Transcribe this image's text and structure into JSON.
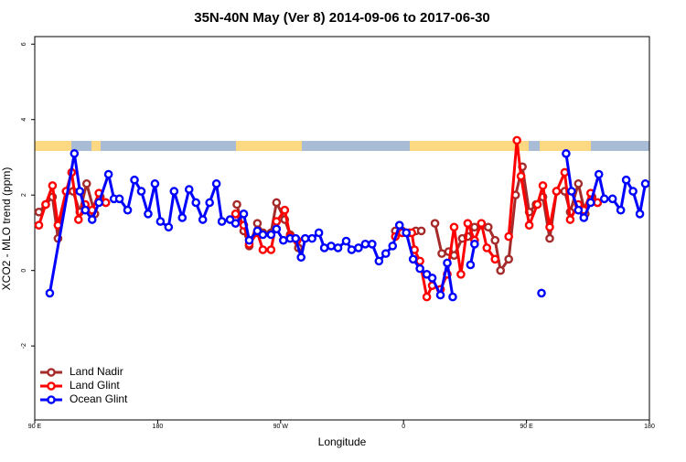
{
  "chart_data": {
    "type": "line",
    "title": "35N-40N May (Ver 8)   2014-09-06 to 2017-06-30",
    "x_label": "Longitude",
    "y_label": "XCO2 - MLO trend (ppm)",
    "xlim": [
      90,
      540
    ],
    "xticks": [
      {
        "value": 90,
        "label": "90 E"
      },
      {
        "value": 180,
        "label": "180"
      },
      {
        "value": 270,
        "label": "90 W"
      },
      {
        "value": 360,
        "label": "0"
      },
      {
        "value": 450,
        "label": "90 E"
      },
      {
        "value": 540,
        "label": "180"
      }
    ],
    "ylim": [
      -3.96,
      6.2
    ],
    "yticks": [
      -2,
      0,
      2,
      4,
      6
    ],
    "legend": "bottom-left",
    "series": [
      {
        "name": "Land Nadir",
        "color": "#a52a2a",
        "x": [
          93,
          98,
          103,
          107,
          113,
          118,
          123,
          128,
          134,
          138,
          142,
          null,
          238,
          243,
          247,
          253,
          257,
          263,
          267,
          273,
          277,
          283,
          null,
          354,
          359,
          364,
          369,
          373,
          null,
          383,
          388,
          393,
          397,
          403,
          407,
          412,
          417,
          422,
          427,
          431,
          437,
          442,
          447,
          452,
          457,
          462,
          467,
          472,
          478,
          482,
          488,
          493,
          498,
          502
        ],
        "values": [
          1.55,
          1.75,
          1.95,
          0.85,
          2.1,
          2.1,
          1.55,
          2.3,
          1.5,
          1.95,
          1.8,
          null,
          1.75,
          1.05,
          0.65,
          1.25,
          1.0,
          1.0,
          1.8,
          1.35,
          0.95,
          0.6,
          null,
          1.05,
          1.05,
          1.0,
          1.05,
          1.05,
          null,
          1.25,
          0.45,
          0.5,
          0.4,
          0.85,
          0.9,
          1.15,
          1.2,
          1.15,
          0.8,
          0.0,
          0.3,
          2.0,
          2.75,
          1.55,
          1.75,
          1.95,
          0.85,
          2.1,
          2.1,
          1.55,
          2.3,
          1.5,
          1.95,
          1.8
        ]
      },
      {
        "name": "Land Glint",
        "color": "#ff0000",
        "x": [
          93,
          98,
          103,
          107,
          113,
          117,
          122,
          127,
          132,
          137,
          142,
          null,
          237,
          243,
          247,
          253,
          257,
          263,
          267,
          273,
          277,
          282,
          null,
          354,
          359,
          366,
          368,
          372,
          377,
          381,
          387,
          392,
          397,
          402,
          407,
          412,
          417,
          421,
          427,
          null,
          437,
          443,
          446,
          452,
          458,
          462,
          467,
          472,
          478,
          482,
          488,
          492,
          497,
          502
        ],
        "values": [
          1.2,
          1.75,
          2.25,
          1.2,
          2.1,
          2.6,
          1.35,
          1.75,
          1.6,
          2.05,
          1.8,
          null,
          1.5,
          1.2,
          0.7,
          1.0,
          0.55,
          0.55,
          1.3,
          1.6,
          0.9,
          0.8,
          null,
          0.9,
          1.0,
          1.0,
          0.55,
          0.25,
          -0.7,
          -0.4,
          -0.5,
          -0.1,
          1.15,
          -0.1,
          1.25,
          0.8,
          1.25,
          0.6,
          0.3,
          null,
          0.9,
          3.45,
          2.5,
          1.2,
          1.75,
          2.25,
          1.15,
          2.1,
          2.6,
          1.35,
          1.75,
          1.6,
          2.05,
          1.8
        ]
      },
      {
        "name": "Ocean Glint",
        "color": "#0000ff",
        "x": [
          101,
          119,
          123,
          127,
          132,
          137,
          144,
          148,
          152,
          158,
          163,
          168,
          173,
          178,
          182,
          188,
          192,
          198,
          203,
          208,
          213,
          218,
          223,
          227,
          233,
          237,
          243,
          247,
          253,
          257,
          263,
          267,
          272,
          277,
          281,
          285,
          288,
          293,
          298,
          302,
          307,
          312,
          318,
          322,
          327,
          332,
          337,
          342,
          347,
          352,
          357,
          362,
          367,
          372,
          377,
          381,
          387,
          392,
          396,
          null,
          409,
          412,
          null,
          461,
          null,
          479,
          483,
          488,
          492,
          497,
          503,
          507,
          513,
          519,
          523,
          528,
          533,
          537
        ],
        "values": [
          -0.6,
          3.1,
          2.1,
          1.6,
          1.35,
          1.8,
          2.55,
          1.9,
          1.9,
          1.6,
          2.4,
          2.1,
          1.5,
          2.3,
          1.3,
          1.15,
          2.1,
          1.4,
          2.15,
          1.8,
          1.35,
          1.8,
          2.3,
          1.3,
          1.35,
          1.25,
          1.5,
          0.8,
          1.05,
          0.95,
          0.95,
          1.1,
          0.8,
          0.85,
          0.85,
          0.35,
          0.85,
          0.85,
          1.0,
          0.6,
          0.65,
          0.6,
          0.78,
          0.55,
          0.6,
          0.7,
          0.7,
          0.25,
          0.45,
          0.65,
          1.2,
          1.0,
          0.3,
          0.05,
          -0.1,
          -0.2,
          -0.65,
          0.2,
          -0.7,
          null,
          0.15,
          0.7,
          null,
          -0.6,
          null,
          3.1,
          2.1,
          1.6,
          1.4,
          1.8,
          2.55,
          1.9,
          1.9,
          1.6,
          2.4,
          2.1,
          1.5,
          2.3
        ]
      }
    ]
  }
}
